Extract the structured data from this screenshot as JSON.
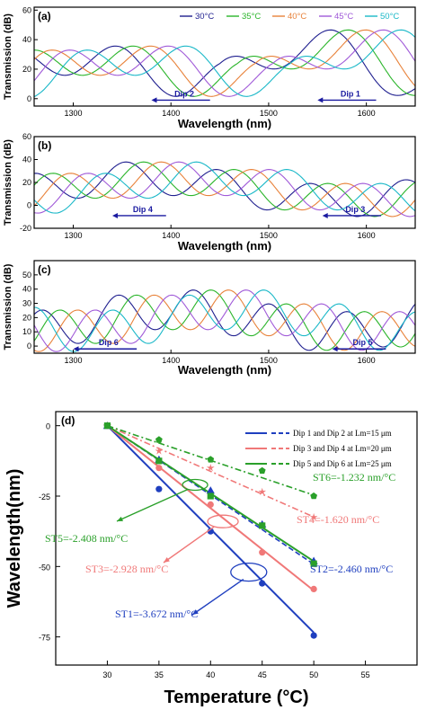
{
  "chart_data": [
    {
      "type": "line",
      "panel": "(a)",
      "ylabel": "Transmission (dB)",
      "xlabel": "Wavelength (nm)",
      "xlim": [
        1260,
        1650
      ],
      "ylim": [
        -5,
        62
      ],
      "xticks": [
        1300,
        1400,
        1500,
        1600
      ],
      "yticks": [
        0,
        20,
        40,
        60
      ],
      "series": [
        {
          "name": "30°C",
          "color": "#1f1f8f",
          "shift": 0
        },
        {
          "name": "35°C",
          "color": "#2bb52b",
          "shift": -18
        },
        {
          "name": "40°C",
          "color": "#e8823a",
          "shift": -36
        },
        {
          "name": "45°C",
          "color": "#a05ad8",
          "shift": -54
        },
        {
          "name": "50°C",
          "color": "#1ab8c8",
          "shift": -72
        }
      ],
      "dips": [
        {
          "label": "Dip 2"
        },
        {
          "label": "Dip 1"
        }
      ]
    },
    {
      "type": "line",
      "panel": "(b)",
      "ylabel": "Transmission (dB)",
      "xlabel": "Wavelength (nm)",
      "xlim": [
        1260,
        1650
      ],
      "ylim": [
        -20,
        60
      ],
      "xticks": [
        1300,
        1400,
        1500,
        1600
      ],
      "yticks": [
        -20,
        0,
        20,
        40,
        60
      ],
      "dips": [
        {
          "label": "Dip 4"
        },
        {
          "label": "Dip 3"
        }
      ]
    },
    {
      "type": "line",
      "panel": "(c)",
      "ylabel": "Transmission (dB)",
      "xlabel": "Wavelength (nm)",
      "xlim": [
        1260,
        1650
      ],
      "ylim": [
        -5,
        60
      ],
      "xticks": [
        1300,
        1400,
        1500,
        1600
      ],
      "yticks": [
        0,
        10,
        20,
        30,
        40,
        50
      ],
      "dips": [
        {
          "label": "Dip 6"
        },
        {
          "label": "Dip 5"
        }
      ]
    },
    {
      "type": "scatter",
      "panel": "(d)",
      "xlabel": "Temperature (°C)",
      "ylabel": "Wavelength(nm)",
      "xlim": [
        25,
        60
      ],
      "ylim": [
        -85,
        5
      ],
      "xticks": [
        30,
        35,
        40,
        45,
        50,
        55
      ],
      "yticks": [
        0,
        -25,
        -50,
        -75
      ],
      "legend": [
        {
          "label": "Dip 1 and Dip 2 at Lm=15 μm",
          "color": "#1f3fbf"
        },
        {
          "label": "Dip 3 and Dip 4 at Lm=20 μm",
          "color": "#f07878"
        },
        {
          "label": "Dip 5 and Dip 6 at Lm=25 μm",
          "color": "#2aa02a"
        }
      ],
      "series": [
        {
          "name": "Dip 1",
          "color": "#1f3fbf",
          "marker": "circle",
          "x": [
            30,
            35,
            40,
            45,
            50
          ],
          "y": [
            0,
            -22.5,
            -37.5,
            -56,
            -74.5
          ],
          "fit_slope": -3.672,
          "fit_line": "solid"
        },
        {
          "name": "Dip 2",
          "color": "#1f3fbf",
          "marker": "triangle",
          "x": [
            30,
            35,
            40,
            45,
            50
          ],
          "y": [
            0,
            -12,
            -23,
            -35,
            -48
          ],
          "fit_slope": -2.46,
          "fit_line": "dash"
        },
        {
          "name": "Dip 3",
          "color": "#f07878",
          "marker": "circle",
          "x": [
            30,
            35,
            40,
            45,
            50
          ],
          "y": [
            0,
            -15,
            -28,
            -45,
            -58
          ],
          "fit_slope": -2.928,
          "fit_line": "solid"
        },
        {
          "name": "Dip 4",
          "color": "#f07878",
          "marker": "star",
          "x": [
            30,
            35,
            40,
            45,
            50
          ],
          "y": [
            0,
            -9,
            -15,
            -23.5,
            -32.5
          ],
          "fit_slope": -1.62,
          "fit_line": "dashdot"
        },
        {
          "name": "Dip 5",
          "color": "#2aa02a",
          "marker": "square",
          "x": [
            30,
            35,
            40,
            45,
            50
          ],
          "y": [
            0,
            -12.5,
            -25,
            -35.5,
            -49
          ],
          "fit_slope": -2.408,
          "fit_line": "solid"
        },
        {
          "name": "Dip 6",
          "color": "#2aa02a",
          "marker": "pentagon",
          "x": [
            30,
            35,
            40,
            45,
            50
          ],
          "y": [
            0,
            -5,
            -12,
            -16,
            -25
          ],
          "fit_slope": -1.232,
          "fit_line": "dashdot"
        }
      ],
      "annotations": [
        {
          "text": "ST1=-3.672 nm/°C",
          "color": "#1f3fbf"
        },
        {
          "text": "ST2=-2.460 nm/°C",
          "color": "#1f3fbf"
        },
        {
          "text": "ST3=-2.928 nm/°C",
          "color": "#f07878"
        },
        {
          "text": "ST4=-1.620 nm/°C",
          "color": "#f07878"
        },
        {
          "text": "ST5=-2.408 nm/°C",
          "color": "#2aa02a"
        },
        {
          "text": "ST6=-1.232 nm/°C",
          "color": "#2aa02a"
        }
      ]
    }
  ]
}
